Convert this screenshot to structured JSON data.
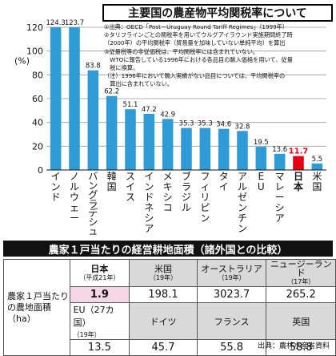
{
  "title": "主要国の農産物平均関税率について",
  "notes": [
    "①出典：OECD「Post－Uruguay Round Tariff Regimes」（1999年）",
    "②タリフラインごとの関税率を用いてウルグアイラウンド実施期間終了時",
    "（2000年）の平均関税率（貿易量を加味していない単純平均）を算出",
    "③従量税等の非従価税は、平均関税率には含まれていない。",
    "　WTOに報告している1996年における各品目の輸入価格を用いて、従量",
    "　税に換算。",
    "（注）1996年において輸入実績がない品目については、平均関税率の",
    "　算出に含まれていない。"
  ],
  "chart_data": {
    "type": "bar",
    "title": "主要国の農産物平均関税率について",
    "ylabel": "(%)",
    "ylim": [
      0,
      120
    ],
    "yticks": [
      0,
      20,
      40,
      60,
      80,
      100,
      120
    ],
    "categories": [
      "インド",
      "ノルウェー",
      "バングラデシュ",
      "韓国",
      "スイス",
      "インドネシア",
      "メキシコ",
      "ブラジル",
      "フィリピン",
      "タイ",
      "アルゼンチン",
      "EU",
      "マレーシア",
      "日本",
      "米国"
    ],
    "values": [
      124.3,
      123.7,
      83.8,
      62.2,
      51.1,
      47.2,
      42.9,
      35.3,
      35.3,
      34.6,
      32.8,
      19.5,
      13.6,
      11.7,
      5.5
    ],
    "value_labels": [
      "124.3",
      "123.7",
      "83.8",
      "62.2",
      "51.1",
      "47.2",
      "42.9",
      "35.3",
      "35.3",
      "34.6",
      "32.8",
      "19.5",
      "13.6",
      "11.7",
      "5.5"
    ],
    "highlight_category": "日本",
    "colors": {
      "bar": "#2e9bd6",
      "highlight": "#e60012",
      "grid": "#999999"
    }
  },
  "table": {
    "title": "農家１戸当たりの経営耕地面積（諸外国との比較）",
    "row_label": "農家１戸当たりの農地面積（ha）",
    "row1": [
      {
        "name": "日本",
        "year": "（平成21年）",
        "value": "1.9",
        "highlight": true
      },
      {
        "name": "米国",
        "year": "（19年）",
        "value": "198.1"
      },
      {
        "name": "オーストラリア",
        "year": "（19年）",
        "value": "3023.7"
      },
      {
        "name": "ニュージーランド",
        "year": "（17年）",
        "value": "265.2"
      }
    ],
    "eu": {
      "name": "EU（27カ国）",
      "year": "（19年）",
      "value": "13.5"
    },
    "row2": [
      {
        "name": "ドイツ",
        "value": "45.7"
      },
      {
        "name": "フランス",
        "value": "55.8"
      },
      {
        "name": "英国",
        "value": "58.8"
      }
    ],
    "source": "出典：農林水産省資料"
  }
}
